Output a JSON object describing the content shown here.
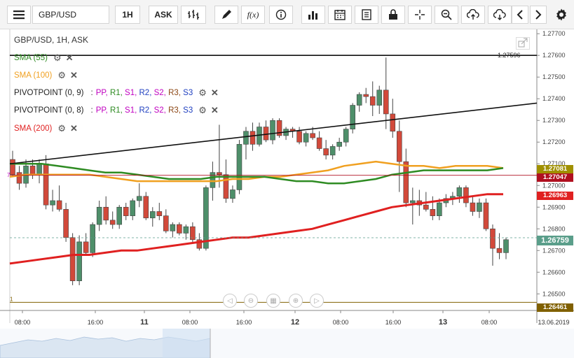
{
  "toolbar": {
    "symbol": "GBP/USD",
    "timeframe": "1H",
    "price_type": "ASK",
    "icons": [
      "menu-icon",
      "bars-icon",
      "pencil-icon",
      "fx-icon",
      "info-icon",
      "volume-bars-icon",
      "calendar-icon",
      "list-icon",
      "lock-icon",
      "crosshair-icon",
      "zoom-icon",
      "cloud-upload-icon",
      "cloud-download-icon",
      "chevron-left-icon",
      "chevron-right-icon",
      "gear-icon"
    ]
  },
  "chart_header": "GBP/USD, 1H, ASK",
  "legends": [
    {
      "label": "SMA (55)",
      "color": "#2e8b22"
    },
    {
      "label": "SMA (100)",
      "color": "#f0a020"
    },
    {
      "label": "PIVOTPOINT (0, 9)",
      "parts": [
        "PP",
        "R1",
        "S1",
        "R2",
        "S2",
        "R3",
        "S3"
      ]
    },
    {
      "label": "PIVOTPOINT (0, 8)",
      "parts": [
        "PP",
        "R1",
        "S1",
        "R2",
        "S2",
        "R3",
        "S3"
      ]
    },
    {
      "label": "SMA (200)",
      "color": "#e02020"
    }
  ],
  "pivot_colors": [
    "#c000c0",
    "#2e8b22",
    "#c000c0",
    "#2040c0",
    "#c000c0",
    "#8b4513",
    "#2040c0"
  ],
  "price_axis_labels": [
    "1.27700",
    "1.27600",
    "1.27500",
    "1.27400",
    "1.27300",
    "1.27200",
    "1.27100",
    "1.27000",
    "1.26900",
    "1.26800",
    "1.26700",
    "1.26600",
    "1.26500"
  ],
  "price_tags": [
    {
      "value": "1.27081",
      "color": "#a09000"
    },
    {
      "value": "1.27047",
      "color": "#b01020"
    },
    {
      "value": "1.26963",
      "color": "#e02020"
    },
    {
      "value": "1.26759",
      "color": "#5a9e8a"
    },
    {
      "value": "1.26461",
      "color": "#806000"
    }
  ],
  "line_label": "1.27596",
  "side_labels": [
    "7",
    "1"
  ],
  "time_axis": [
    {
      "label": "08:00",
      "bold": false
    },
    {
      "label": "16:00",
      "bold": false
    },
    {
      "label": "11",
      "bold": true
    },
    {
      "label": "08:00",
      "bold": false
    },
    {
      "label": "16:00",
      "bold": false
    },
    {
      "label": "12",
      "bold": true
    },
    {
      "label": "08:00",
      "bold": false
    },
    {
      "label": "16:00",
      "bold": false
    },
    {
      "label": "13",
      "bold": true
    },
    {
      "label": "08:00",
      "bold": false
    }
  ],
  "date_label": "13.06.2019",
  "chart_data": {
    "type": "candlestick",
    "y_range": [
      1.2643,
      1.2772
    ],
    "candles": [
      [
        1.2712,
        1.2716,
        1.2704,
        1.2705
      ],
      [
        1.2706,
        1.2709,
        1.2698,
        1.2701
      ],
      [
        1.2701,
        1.2712,
        1.2699,
        1.2709
      ],
      [
        1.2709,
        1.2712,
        1.2703,
        1.2705
      ],
      [
        1.2705,
        1.2712,
        1.2701,
        1.271
      ],
      [
        1.271,
        1.2714,
        1.2689,
        1.2691
      ],
      [
        1.2691,
        1.2698,
        1.2688,
        1.2693
      ],
      [
        1.2693,
        1.27,
        1.2688,
        1.2689
      ],
      [
        1.2689,
        1.2692,
        1.2674,
        1.2676
      ],
      [
        1.2676,
        1.2678,
        1.2654,
        1.2656
      ],
      [
        1.2656,
        1.2677,
        1.2654,
        1.2674
      ],
      [
        1.2674,
        1.2678,
        1.2668,
        1.2669
      ],
      [
        1.2669,
        1.2683,
        1.2667,
        1.2682
      ],
      [
        1.2682,
        1.2693,
        1.2679,
        1.269
      ],
      [
        1.269,
        1.2695,
        1.2682,
        1.2684
      ],
      [
        1.2684,
        1.2688,
        1.268,
        1.2682
      ],
      [
        1.2682,
        1.2691,
        1.268,
        1.269
      ],
      [
        1.269,
        1.2692,
        1.2684,
        1.2686
      ],
      [
        1.2686,
        1.2694,
        1.2684,
        1.2693
      ],
      [
        1.2693,
        1.2701,
        1.269,
        1.2695
      ],
      [
        1.2695,
        1.2697,
        1.2684,
        1.2685
      ],
      [
        1.2685,
        1.269,
        1.2681,
        1.2688
      ],
      [
        1.2688,
        1.2692,
        1.2684,
        1.2686
      ],
      [
        1.2686,
        1.2689,
        1.2678,
        1.2679
      ],
      [
        1.2679,
        1.2683,
        1.2676,
        1.2682
      ],
      [
        1.2682,
        1.2683,
        1.2677,
        1.2678
      ],
      [
        1.2678,
        1.2682,
        1.2675,
        1.2681
      ],
      [
        1.2681,
        1.2683,
        1.2673,
        1.2675
      ],
      [
        1.2675,
        1.2678,
        1.267,
        1.2671
      ],
      [
        1.2671,
        1.27,
        1.267,
        1.2699
      ],
      [
        1.2699,
        1.2711,
        1.2693,
        1.2706
      ],
      [
        1.2706,
        1.2728,
        1.2699,
        1.2705
      ],
      [
        1.2705,
        1.2712,
        1.2692,
        1.2694
      ],
      [
        1.2694,
        1.27,
        1.2692,
        1.2698
      ],
      [
        1.2698,
        1.2721,
        1.2696,
        1.2719
      ],
      [
        1.2719,
        1.2727,
        1.2712,
        1.2725
      ],
      [
        1.2725,
        1.2729,
        1.2716,
        1.2719
      ],
      [
        1.2719,
        1.2729,
        1.2718,
        1.2727
      ],
      [
        1.2727,
        1.273,
        1.272,
        1.2721
      ],
      [
        1.2721,
        1.2731,
        1.2719,
        1.273
      ],
      [
        1.273,
        1.2731,
        1.2722,
        1.2723
      ],
      [
        1.2723,
        1.2727,
        1.2721,
        1.2726
      ],
      [
        1.2726,
        1.2727,
        1.2722,
        1.2725
      ],
      [
        1.2725,
        1.2727,
        1.2719,
        1.272
      ],
      [
        1.272,
        1.2725,
        1.2718,
        1.2724
      ],
      [
        1.2724,
        1.2727,
        1.2721,
        1.2722
      ],
      [
        1.2722,
        1.2725,
        1.2716,
        1.2717
      ],
      [
        1.2717,
        1.2721,
        1.2712,
        1.2714
      ],
      [
        1.2714,
        1.2719,
        1.2712,
        1.2718
      ],
      [
        1.2718,
        1.2722,
        1.2716,
        1.272
      ],
      [
        1.272,
        1.2727,
        1.2718,
        1.2726
      ],
      [
        1.2726,
        1.2738,
        1.2724,
        1.2737
      ],
      [
        1.2737,
        1.2743,
        1.2734,
        1.2742
      ],
      [
        1.2742,
        1.2745,
        1.2738,
        1.2741
      ],
      [
        1.2741,
        1.2748,
        1.2732,
        1.2737
      ],
      [
        1.2737,
        1.2746,
        1.2733,
        1.2744
      ],
      [
        1.2744,
        1.2759,
        1.2726,
        1.2733
      ],
      [
        1.2733,
        1.274,
        1.2722,
        1.2725
      ],
      [
        1.2725,
        1.273,
        1.2697,
        1.2711
      ],
      [
        1.2711,
        1.2717,
        1.269,
        1.2692
      ],
      [
        1.2692,
        1.2699,
        1.2682,
        1.2693
      ],
      [
        1.2693,
        1.2698,
        1.2686,
        1.2691
      ],
      [
        1.2691,
        1.2697,
        1.2688,
        1.2689
      ],
      [
        1.2689,
        1.2695,
        1.2684,
        1.2686
      ],
      [
        1.2686,
        1.2694,
        1.2684,
        1.2692
      ],
      [
        1.2692,
        1.2696,
        1.269,
        1.2694
      ],
      [
        1.2694,
        1.2697,
        1.2691,
        1.2695
      ],
      [
        1.2695,
        1.27,
        1.2692,
        1.2699
      ],
      [
        1.2699,
        1.27,
        1.269,
        1.2692
      ],
      [
        1.2692,
        1.2695,
        1.2686,
        1.2688
      ],
      [
        1.2688,
        1.2694,
        1.2685,
        1.2692
      ],
      [
        1.2692,
        1.2694,
        1.2679,
        1.268
      ],
      [
        1.268,
        1.2682,
        1.2663,
        1.2671
      ],
      [
        1.2671,
        1.2678,
        1.2666,
        1.2669
      ],
      [
        1.2669,
        1.2676,
        1.2666,
        1.2675
      ]
    ],
    "sma55": [
      1.271,
      1.271,
      1.271,
      1.2709,
      1.2708,
      1.2707,
      1.2706,
      1.2706,
      1.2705,
      1.2704,
      1.2703,
      1.2703,
      1.2703,
      1.2704,
      1.2704,
      1.2704,
      1.2704,
      1.2703,
      1.2702,
      1.2702,
      1.2701,
      1.2701,
      1.2702,
      1.2703,
      1.2705,
      1.2706,
      1.2707,
      1.2707,
      1.2707,
      1.2707,
      1.2707,
      1.2708
    ],
    "sma100": [
      1.2704,
      1.2705,
      1.2705,
      1.2705,
      1.2705,
      1.2705,
      1.2704,
      1.2703,
      1.2702,
      1.2702,
      1.2702,
      1.2702,
      1.2702,
      1.2702,
      1.2703,
      1.2703,
      1.2704,
      1.2704,
      1.2705,
      1.2706,
      1.2707,
      1.2709,
      1.271,
      1.2711,
      1.271,
      1.2709,
      1.2709,
      1.2708,
      1.2709,
      1.2709,
      1.2709,
      1.2708
    ],
    "sma200": [
      1.2664,
      1.2665,
      1.2666,
      1.2667,
      1.2668,
      1.2668,
      1.2669,
      1.267,
      1.267,
      1.2671,
      1.2672,
      1.2673,
      1.2674,
      1.2675,
      1.2676,
      1.2676,
      1.2677,
      1.2678,
      1.2679,
      1.268,
      1.2682,
      1.2684,
      1.2686,
      1.2688,
      1.269,
      1.2691,
      1.2692,
      1.2693,
      1.2694,
      1.2695,
      1.2696,
      1.2696
    ],
    "trendlines": [
      {
        "from": [
          1.271,
          "start"
        ],
        "to": [
          1.2738,
          "end"
        ]
      },
      {
        "horizontal": 1.276
      }
    ],
    "level_line": 1.26461,
    "dashed_line": 1.26759
  }
}
